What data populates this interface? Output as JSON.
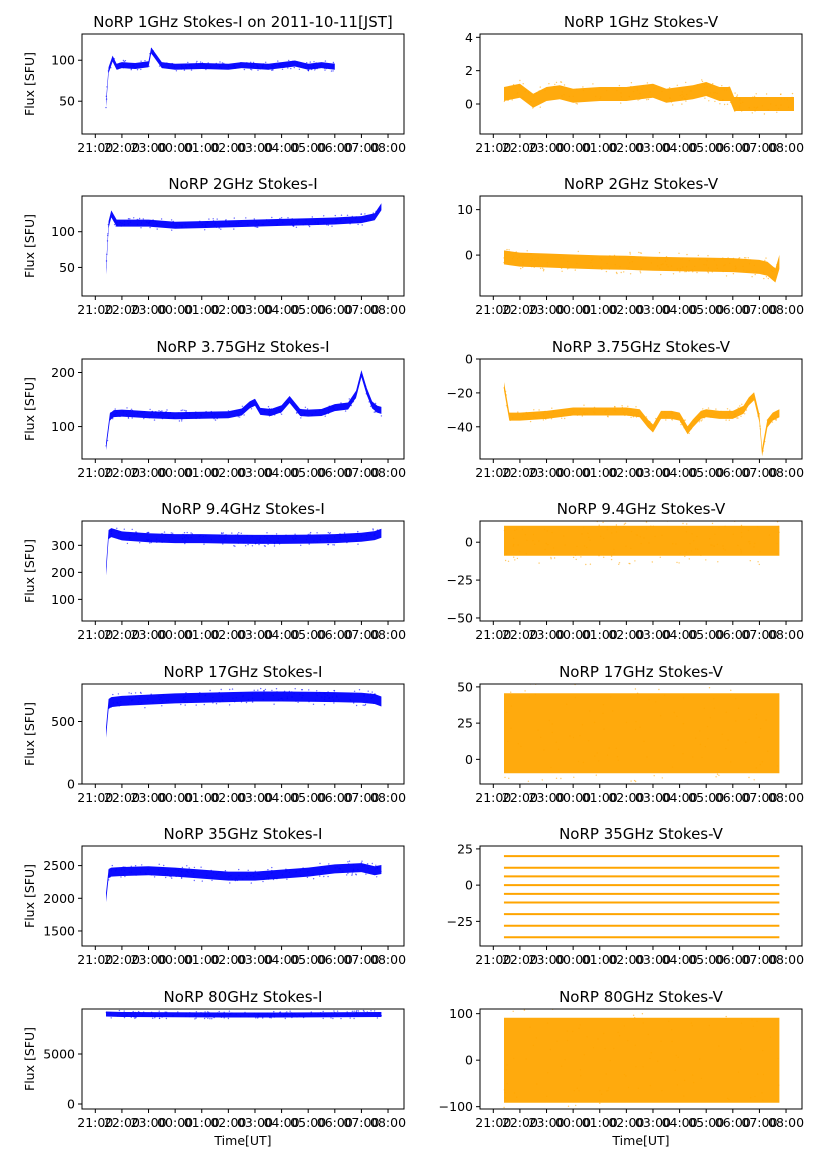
{
  "figure": {
    "colors": {
      "stokes_i": "#0000ff",
      "stokes_v": "#ffa500",
      "axis": "#000000"
    },
    "time_ticks": [
      "21:00",
      "22:00",
      "23:00",
      "00:00",
      "01:00",
      "02:00",
      "03:00",
      "04:00",
      "05:00",
      "06:00",
      "07:00",
      "08:00"
    ],
    "xlim_hours": [
      20.5,
      32.6
    ],
    "data_start_hour": 21.4,
    "data_end_hour": 31.75
  },
  "chart_data": [
    {
      "type": "scatter",
      "title": "NoRP 1GHz Stokes-I on 2011-10-11[JST]",
      "ylabel": "Flux [SFU]",
      "xlabel": "",
      "ylim": [
        10,
        132
      ],
      "yticks": [
        50,
        100
      ],
      "color": "#0000ff",
      "band": "I",
      "series": [
        {
          "name": "1GHz Stokes-I",
          "x": [
            21.4,
            21.5,
            21.65,
            21.8,
            22.0,
            22.5,
            23.0,
            23.1,
            23.5,
            24.0,
            25.0,
            26.0,
            26.5,
            27.0,
            27.5,
            28.0,
            28.5,
            29.0,
            29.5,
            30.0
          ],
          "y": [
            47,
            88,
            102,
            92,
            94,
            93,
            95,
            112,
            94,
            92,
            93,
            92,
            94,
            93,
            92,
            94,
            96,
            92,
            94,
            92
          ],
          "thickness": 6
        }
      ]
    },
    {
      "type": "scatter",
      "title": "NoRP 1GHz Stokes-V",
      "ylabel": "",
      "xlabel": "",
      "ylim": [
        -1.8,
        4.2
      ],
      "yticks": [
        0,
        2,
        4
      ],
      "color": "#ffa500",
      "band": "V",
      "series": [
        {
          "name": "1GHz Stokes-V",
          "x": [
            21.4,
            22.0,
            22.5,
            23.0,
            23.5,
            24.0,
            25.0,
            26.0,
            27.0,
            27.5,
            28.0,
            28.5,
            29.0,
            29.5,
            29.9,
            30.05,
            32.3
          ],
          "y": [
            0.6,
            0.8,
            0.2,
            0.6,
            0.7,
            0.5,
            0.6,
            0.6,
            0.8,
            0.5,
            0.6,
            0.7,
            0.9,
            0.6,
            0.6,
            0.0,
            0.0
          ],
          "thickness": 14
        }
      ]
    },
    {
      "type": "scatter",
      "title": "NoRP 2GHz Stokes-I",
      "ylabel": "Flux [SFU]",
      "xlabel": "",
      "ylim": [
        10,
        150
      ],
      "yticks": [
        50,
        100
      ],
      "color": "#0000ff",
      "band": "I",
      "series": [
        {
          "name": "2GHz Stokes-I",
          "x": [
            21.4,
            21.5,
            21.6,
            21.8,
            22.5,
            23.0,
            24.0,
            25.0,
            26.0,
            27.0,
            28.0,
            29.0,
            30.0,
            30.5,
            31.0,
            31.5,
            31.75
          ],
          "y": [
            45,
            110,
            125,
            112,
            112,
            112,
            109,
            110,
            111,
            112,
            113,
            114,
            115,
            116,
            117,
            121,
            135
          ],
          "thickness": 7
        }
      ]
    },
    {
      "type": "scatter",
      "title": "NoRP 2GHz Stokes-V",
      "ylabel": "",
      "xlabel": "",
      "ylim": [
        -9,
        13
      ],
      "yticks": [
        0,
        10
      ],
      "color": "#ffa500",
      "band": "V",
      "series": [
        {
          "name": "2GHz Stokes-V",
          "x": [
            21.4,
            22.0,
            23.0,
            24.0,
            25.0,
            26.0,
            27.0,
            28.0,
            29.0,
            30.0,
            30.5,
            31.0,
            31.3,
            31.6,
            31.75
          ],
          "y": [
            -0.5,
            -1.0,
            -1.2,
            -1.4,
            -1.6,
            -1.7,
            -1.9,
            -2.0,
            -2.1,
            -2.2,
            -2.4,
            -2.6,
            -3.0,
            -4.5,
            -1.5
          ],
          "thickness": 14
        }
      ]
    },
    {
      "type": "scatter",
      "title": "NoRP 3.75GHz Stokes-I",
      "ylabel": "Flux [SFU]",
      "xlabel": "",
      "ylim": [
        40,
        225
      ],
      "yticks": [
        100,
        200
      ],
      "color": "#0000ff",
      "band": "I",
      "series": [
        {
          "name": "3.75GHz Stokes-I",
          "x": [
            21.4,
            21.55,
            21.7,
            22.0,
            23.0,
            24.0,
            25.0,
            26.0,
            26.5,
            26.8,
            27.0,
            27.2,
            27.6,
            28.0,
            28.3,
            28.5,
            28.7,
            29.0,
            29.5,
            30.0,
            30.5,
            30.8,
            31.0,
            31.2,
            31.4,
            31.6,
            31.75
          ],
          "y": [
            63,
            118,
            124,
            125,
            122,
            120,
            121,
            122,
            127,
            140,
            145,
            128,
            126,
            133,
            150,
            138,
            126,
            125,
            126,
            135,
            138,
            160,
            198,
            165,
            140,
            132,
            130
          ],
          "thickness": 7
        }
      ]
    },
    {
      "type": "scatter",
      "title": "NoRP 3.75GHz Stokes-V",
      "ylabel": "",
      "xlabel": "",
      "ylim": [
        -59,
        0
      ],
      "yticks": [
        0,
        -20,
        -40
      ],
      "color": "#ffa500",
      "band": "V",
      "series": [
        {
          "name": "3.75GHz Stokes-V",
          "x": [
            21.4,
            21.6,
            22.0,
            23.0,
            24.0,
            25.0,
            26.0,
            26.5,
            26.8,
            27.0,
            27.3,
            27.7,
            28.0,
            28.3,
            28.5,
            28.8,
            29.0,
            29.5,
            30.0,
            30.4,
            30.6,
            30.8,
            31.0,
            31.1,
            31.3,
            31.5,
            31.75
          ],
          "y": [
            -16,
            -34,
            -34,
            -33,
            -31,
            -31,
            -31,
            -32,
            -38,
            -41,
            -33,
            -33,
            -34,
            -42,
            -38,
            -33,
            -32,
            -33,
            -33,
            -30,
            -25,
            -22,
            -35,
            -55,
            -38,
            -34,
            -32
          ],
          "thickness": 8
        }
      ]
    },
    {
      "type": "scatter",
      "title": "NoRP 9.4GHz Stokes-I",
      "ylabel": "Flux [SFU]",
      "xlabel": "",
      "ylim": [
        20,
        390
      ],
      "yticks": [
        100,
        200,
        300
      ],
      "color": "#0000ff",
      "band": "I",
      "series": [
        {
          "name": "9.4GHz Stokes-I",
          "x": [
            21.4,
            21.5,
            21.6,
            22.0,
            23.0,
            24.0,
            25.0,
            26.0,
            27.0,
            28.0,
            29.0,
            30.0,
            31.0,
            31.5,
            31.75
          ],
          "y": [
            205,
            340,
            347,
            335,
            328,
            325,
            325,
            323,
            322,
            322,
            323,
            325,
            330,
            336,
            345
          ],
          "thickness": 9
        }
      ]
    },
    {
      "type": "scatter",
      "title": "NoRP 9.4GHz Stokes-V",
      "ylabel": "",
      "xlabel": "",
      "ylim": [
        -52,
        14
      ],
      "yticks": [
        0,
        -25,
        -50
      ],
      "color": "#ffa500",
      "band": "V",
      "series": [
        {
          "name": "9.4GHz Stokes-V",
          "x": [
            21.4,
            22.0,
            24.0,
            26.0,
            28.0,
            30.0,
            31.75
          ],
          "y": [
            1,
            1,
            1,
            1,
            1,
            1,
            1
          ],
          "thickness": 30
        }
      ]
    },
    {
      "type": "scatter",
      "title": "NoRP 17GHz Stokes-I",
      "ylabel": "Flux [SFU]",
      "xlabel": "",
      "ylim": [
        0,
        800
      ],
      "yticks": [
        0,
        500
      ],
      "color": "#0000ff",
      "band": "I",
      "series": [
        {
          "name": "17GHz Stokes-I",
          "x": [
            21.4,
            21.5,
            21.6,
            22.0,
            23.0,
            24.0,
            25.0,
            26.0,
            27.0,
            28.0,
            29.0,
            30.0,
            31.0,
            31.5,
            31.75
          ],
          "y": [
            410,
            640,
            655,
            665,
            675,
            685,
            690,
            695,
            700,
            700,
            698,
            695,
            690,
            680,
            660
          ],
          "thickness": 10
        }
      ]
    },
    {
      "type": "scatter",
      "title": "NoRP 17GHz Stokes-V",
      "ylabel": "",
      "xlabel": "",
      "ylim": [
        -17,
        52
      ],
      "yticks": [
        0,
        25,
        50
      ],
      "color": "#ffa500",
      "band": "V",
      "series": [
        {
          "name": "17GHz Stokes-V",
          "x": [
            21.4,
            22.0,
            24.0,
            26.0,
            28.0,
            30.0,
            31.75
          ],
          "y": [
            18,
            18,
            18,
            18,
            18,
            18,
            18
          ],
          "thickness": 80
        }
      ]
    },
    {
      "type": "scatter",
      "title": "NoRP 35GHz Stokes-I",
      "ylabel": "Flux [SFU]",
      "xlabel": "",
      "ylim": [
        1270,
        2800
      ],
      "yticks": [
        1500,
        2000,
        2500
      ],
      "color": "#0000ff",
      "band": "I",
      "series": [
        {
          "name": "35GHz Stokes-I",
          "x": [
            21.4,
            21.5,
            21.6,
            22.0,
            23.0,
            24.0,
            25.0,
            26.0,
            27.0,
            28.0,
            29.0,
            30.0,
            31.0,
            31.5,
            31.75
          ],
          "y": [
            2010,
            2380,
            2400,
            2410,
            2420,
            2400,
            2370,
            2340,
            2340,
            2370,
            2400,
            2450,
            2470,
            2420,
            2440
          ],
          "thickness": 9
        }
      ]
    },
    {
      "type": "scatter",
      "title": "NoRP 35GHz Stokes-V",
      "ylabel": "",
      "xlabel": "",
      "ylim": [
        -42,
        27
      ],
      "yticks": [
        -25,
        0,
        25
      ],
      "color": "#ffa500",
      "band": "V",
      "series": [
        {
          "name": "35GHz Stokes-V levels",
          "x": [
            21.4,
            31.75
          ],
          "levels": [
            20,
            12,
            6,
            0,
            -6,
            -12,
            -20,
            -28,
            -36
          ],
          "thickness": 2
        }
      ]
    },
    {
      "type": "scatter",
      "title": "NoRP 80GHz Stokes-I",
      "ylabel": "Flux [SFU]",
      "xlabel": "Time[UT]",
      "ylim": [
        -500,
        9500
      ],
      "yticks": [
        0,
        5000
      ],
      "color": "#0000ff",
      "band": "I",
      "series": [
        {
          "name": "80GHz Stokes-I",
          "x": [
            21.4,
            22.0,
            24.0,
            26.0,
            28.0,
            30.0,
            31.75
          ],
          "y": [
            9000,
            8950,
            8920,
            8900,
            8900,
            8920,
            8950
          ],
          "thickness": 5
        }
      ]
    },
    {
      "type": "scatter",
      "title": "NoRP 80GHz Stokes-V",
      "ylabel": "",
      "xlabel": "Time[UT]",
      "ylim": [
        -105,
        110
      ],
      "yticks": [
        -100,
        0,
        100
      ],
      "color": "#ffa500",
      "band": "V",
      "series": [
        {
          "name": "80GHz Stokes-V",
          "x": [
            21.4,
            22.0,
            24.0,
            26.0,
            28.0,
            30.0,
            31.75
          ],
          "y": [
            0,
            0,
            0,
            0,
            0,
            0,
            0
          ],
          "thickness": 85
        }
      ]
    }
  ]
}
